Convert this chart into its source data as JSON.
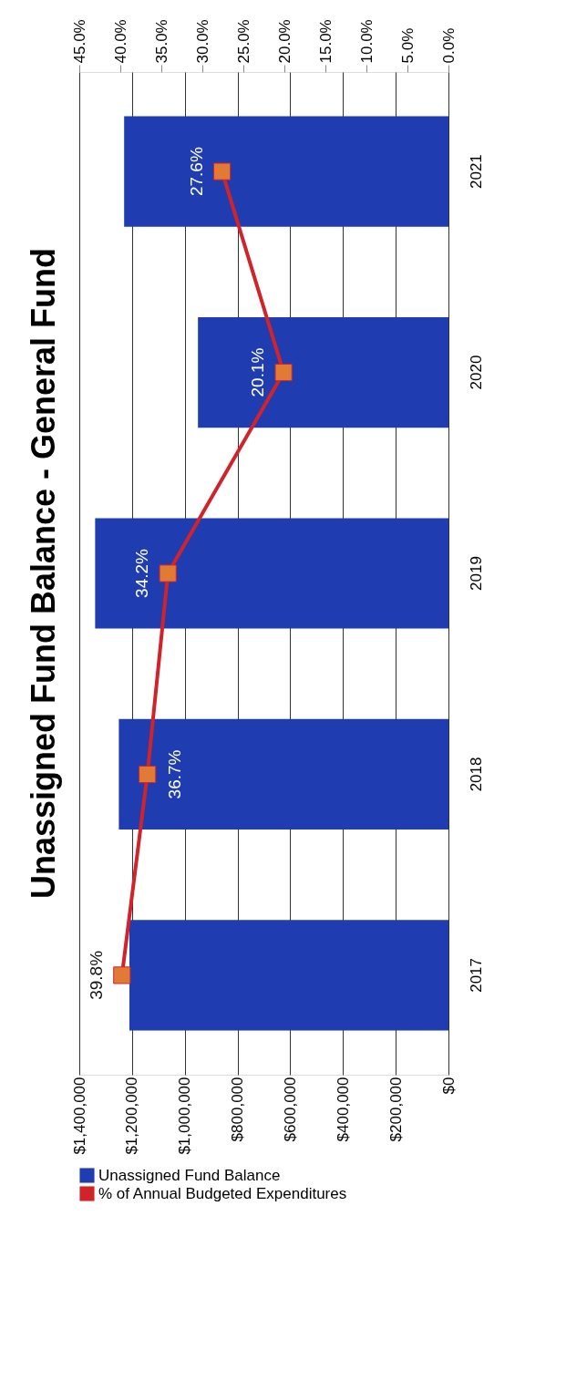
{
  "chart_data": {
    "type": "bar",
    "orientation": "horizontal",
    "title": "Unassigned Fund Balance - General Fund",
    "categories": [
      "2021",
      "2020",
      "2019",
      "2018",
      "2017"
    ],
    "series": [
      {
        "name": "Unassigned Fund Balance",
        "color": "#1f3db0",
        "values": [
          1230000,
          950000,
          1340000,
          1250000,
          1210000
        ]
      },
      {
        "name": "% of Annual Budgeted Expenditures",
        "type": "line",
        "axis": "x2",
        "color": "#d0242a",
        "marker": "square",
        "values": [
          27.6,
          20.1,
          34.2,
          36.7,
          39.8
        ],
        "value_labels": [
          "27.6%",
          "20.1%",
          "34.2%",
          "36.7%",
          "39.8%"
        ]
      }
    ],
    "xlim": [
      1400000,
      0
    ],
    "xticks": [
      {
        "value": 1400000,
        "label": "$1,400,000"
      },
      {
        "value": 1200000,
        "label": "$1,200,000"
      },
      {
        "value": 1000000,
        "label": "$1,000,000"
      },
      {
        "value": 800000,
        "label": "$800,000"
      },
      {
        "value": 600000,
        "label": "$600,000"
      },
      {
        "value": 400000,
        "label": "$400,000"
      },
      {
        "value": 200000,
        "label": "$200,000"
      },
      {
        "value": 0,
        "label": "$0"
      }
    ],
    "x2lim": [
      45,
      0
    ],
    "x2ticks": [
      {
        "value": 45,
        "label": "45.0%"
      },
      {
        "value": 40,
        "label": "40.0%"
      },
      {
        "value": 35,
        "label": "35.0%"
      },
      {
        "value": 30,
        "label": "30.0%"
      },
      {
        "value": 25,
        "label": "25.0%"
      },
      {
        "value": 20,
        "label": "20.0%"
      },
      {
        "value": 15,
        "label": "15.0%"
      },
      {
        "value": 10,
        "label": "10.0%"
      },
      {
        "value": 5,
        "label": "5.0%"
      },
      {
        "value": 0,
        "label": "0.0%"
      }
    ],
    "grid": "x",
    "legend": "bottom"
  }
}
